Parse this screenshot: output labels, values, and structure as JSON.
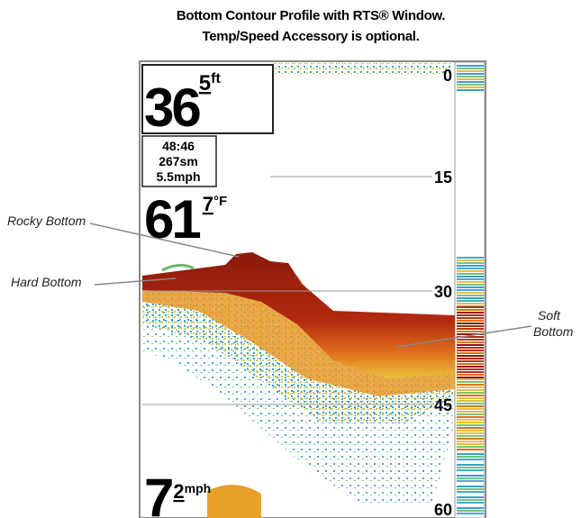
{
  "title": [
    "Bottom Contour Profile with RTS® Window.",
    "Temp/Speed Accessory is optional."
  ],
  "screen": {
    "depth": {
      "whole": "36",
      "decimal": "5",
      "unit": "ft"
    },
    "info": [
      "48:46",
      "267sm",
      "5.5mph"
    ],
    "temperature": {
      "whole": "61",
      "decimal": "7",
      "unit": "°F"
    },
    "speed": {
      "whole": "7",
      "decimal": "2",
      "unit": "mph"
    },
    "depth_scale": [
      "0",
      "15",
      "30",
      "45",
      "60"
    ]
  },
  "callouts": [
    {
      "label": "Rocky Bottom"
    },
    {
      "label": "Hard Bottom"
    },
    {
      "label": [
        "Soft",
        "Bottom"
      ]
    }
  ]
}
